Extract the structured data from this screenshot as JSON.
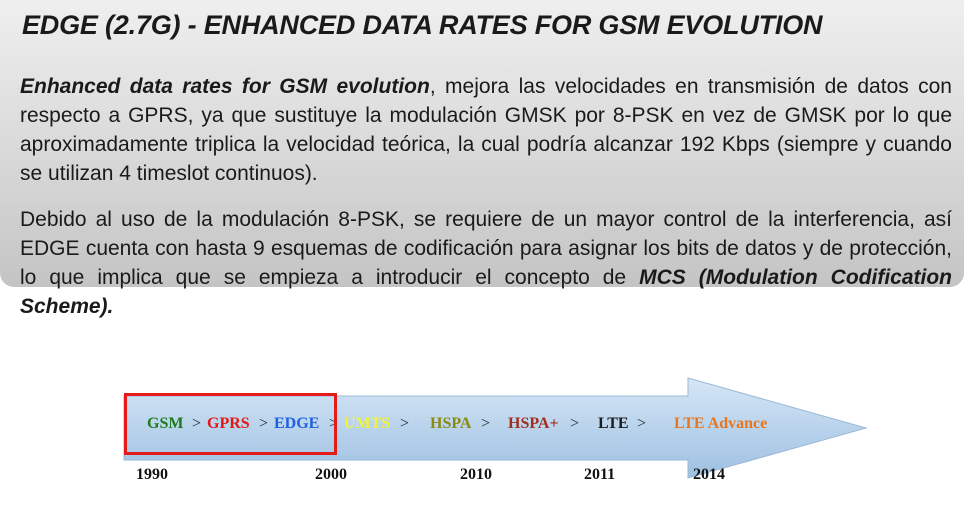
{
  "slide": {
    "title": "EDGE (2.7G) - ENHANCED DATA RATES FOR GSM EVOLUTION",
    "paragraph1": {
      "emphasis": "Enhanced data rates for GSM evolution",
      "text": ", mejora las velocidades en transmisión de datos con respecto a GPRS, ya que sustituye la modulación GMSK por 8-PSK en vez de GMSK por lo que aproximadamente triplica la velocidad teórica, la cual podría alcanzar 192 Kbps (siempre y cuando se utilizan 4 timeslot continuos)."
    },
    "paragraph2": {
      "text": "Debido al uso de la modulación 8-PSK, se requiere de un mayor control de la interferencia, así EDGE cuenta con hasta 9 esquemas de codificación para asignar los bits de datos y de protección, lo que implica que se empieza a introducir el concepto de ",
      "emphasis": "MCS (Modulation Codification Scheme)."
    }
  },
  "timeline": {
    "arrow_color": "#b9d3ec",
    "highlight_color": "#e31b1b",
    "separator": ">",
    "technologies": [
      {
        "name": "GSM",
        "color": "#1f7a1f"
      },
      {
        "name": "GPRS",
        "color": "#e01818"
      },
      {
        "name": "EDGE",
        "color": "#1f5fe0"
      },
      {
        "name": "UMTS",
        "color": "#f2f23a"
      },
      {
        "name": "HSPA",
        "color": "#8a8a10"
      },
      {
        "name": "HSPA+",
        "color": "#a0301e"
      },
      {
        "name": "LTE",
        "color": "#1b1b1b"
      },
      {
        "name": "LTE Advance",
        "color": "#e8761e"
      }
    ],
    "years": [
      "1990",
      "2000",
      "2010",
      "2011",
      "2014"
    ]
  }
}
